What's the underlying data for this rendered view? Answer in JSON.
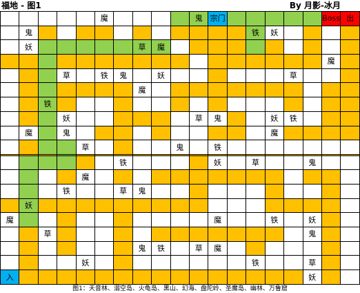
{
  "title": "福地 - 图1",
  "author": "By 月影-冰月",
  "legend": {
    "white": "#ffffff",
    "orange": "#ffc000",
    "green": "#92d050",
    "red": "#ff0000",
    "blue": "#00b0f0"
  },
  "grid": [
    [
      [
        "w",
        ""
      ],
      [
        "w",
        ""
      ],
      [
        "w",
        ""
      ],
      [
        "w",
        ""
      ],
      [
        "w",
        ""
      ],
      [
        "w",
        "魔"
      ],
      [
        "w",
        ""
      ],
      [
        "w",
        ""
      ],
      [
        "w",
        ""
      ],
      [
        "g",
        ""
      ],
      [
        "g",
        "鬼"
      ],
      [
        "c",
        "宗门"
      ],
      [
        "g",
        ""
      ],
      [
        "g",
        ""
      ],
      [
        "g",
        ""
      ],
      [
        "g",
        ""
      ],
      [
        "g",
        ""
      ],
      [
        "r",
        "Boss"
      ],
      [
        "r",
        "出"
      ]
    ],
    [
      [
        "w",
        ""
      ],
      [
        "w",
        "鬼"
      ],
      [
        "o",
        ""
      ],
      [
        "w",
        ""
      ],
      [
        "o",
        ""
      ],
      [
        "o",
        ""
      ],
      [
        "w",
        ""
      ],
      [
        "o",
        ""
      ],
      [
        "w",
        ""
      ],
      [
        "o",
        ""
      ],
      [
        "o",
        ""
      ],
      [
        "o",
        ""
      ],
      [
        "o",
        ""
      ],
      [
        "g",
        "铁"
      ],
      [
        "w",
        "妖"
      ],
      [
        "w",
        ""
      ],
      [
        "o",
        ""
      ],
      [
        "w",
        ""
      ],
      [
        "o",
        ""
      ]
    ],
    [
      [
        "w",
        ""
      ],
      [
        "w",
        "妖"
      ],
      [
        "g",
        ""
      ],
      [
        "g",
        ""
      ],
      [
        "g",
        ""
      ],
      [
        "g",
        ""
      ],
      [
        "g",
        ""
      ],
      [
        "g",
        "草"
      ],
      [
        "g",
        "魔"
      ],
      [
        "w",
        ""
      ],
      [
        "o",
        ""
      ],
      [
        "o",
        ""
      ],
      [
        "o",
        ""
      ],
      [
        "g",
        ""
      ],
      [
        "o",
        ""
      ],
      [
        "w",
        ""
      ],
      [
        "o",
        ""
      ],
      [
        "w",
        ""
      ],
      [
        "o",
        ""
      ]
    ],
    [
      [
        "o",
        ""
      ],
      [
        "o",
        ""
      ],
      [
        "g",
        ""
      ],
      [
        "o",
        ""
      ],
      [
        "o",
        ""
      ],
      [
        "o",
        ""
      ],
      [
        "o",
        ""
      ],
      [
        "o",
        ""
      ],
      [
        "o",
        ""
      ],
      [
        "o",
        ""
      ],
      [
        "w",
        ""
      ],
      [
        "o",
        ""
      ],
      [
        "o",
        ""
      ],
      [
        "o",
        ""
      ],
      [
        "o",
        ""
      ],
      [
        "o",
        ""
      ],
      [
        "o",
        ""
      ],
      [
        "w",
        "魔"
      ],
      [
        "o",
        ""
      ]
    ],
    [
      [
        "w",
        ""
      ],
      [
        "o",
        ""
      ],
      [
        "g",
        ""
      ],
      [
        "w",
        "草"
      ],
      [
        "w",
        ""
      ],
      [
        "w",
        "铁"
      ],
      [
        "w",
        "鬼"
      ],
      [
        "w",
        ""
      ],
      [
        "w",
        "妖"
      ],
      [
        "w",
        ""
      ],
      [
        "w",
        ""
      ],
      [
        "o",
        ""
      ],
      [
        "w",
        ""
      ],
      [
        "w",
        ""
      ],
      [
        "w",
        ""
      ],
      [
        "w",
        "草"
      ],
      [
        "w",
        ""
      ],
      [
        "w",
        ""
      ],
      [
        "o",
        ""
      ]
    ],
    [
      [
        "w",
        ""
      ],
      [
        "o",
        ""
      ],
      [
        "g",
        ""
      ],
      [
        "o",
        ""
      ],
      [
        "o",
        ""
      ],
      [
        "o",
        ""
      ],
      [
        "o",
        ""
      ],
      [
        "w",
        "魔"
      ],
      [
        "w",
        ""
      ],
      [
        "o",
        ""
      ],
      [
        "o",
        ""
      ],
      [
        "o",
        ""
      ],
      [
        "o",
        ""
      ],
      [
        "o",
        ""
      ],
      [
        "o",
        ""
      ],
      [
        "o",
        ""
      ],
      [
        "w",
        ""
      ],
      [
        "o",
        ""
      ],
      [
        "o",
        ""
      ]
    ],
    [
      [
        "w",
        ""
      ],
      [
        "o",
        ""
      ],
      [
        "g",
        "铁"
      ],
      [
        "o",
        ""
      ],
      [
        "w",
        ""
      ],
      [
        "w",
        ""
      ],
      [
        "o",
        ""
      ],
      [
        "w",
        ""
      ],
      [
        "w",
        ""
      ],
      [
        "o",
        ""
      ],
      [
        "w",
        ""
      ],
      [
        "o",
        ""
      ],
      [
        "w",
        ""
      ],
      [
        "w",
        ""
      ],
      [
        "w",
        ""
      ],
      [
        "o",
        ""
      ],
      [
        "w",
        ""
      ],
      [
        "o",
        ""
      ],
      [
        "o",
        ""
      ]
    ],
    [
      [
        "w",
        ""
      ],
      [
        "o",
        ""
      ],
      [
        "g",
        ""
      ],
      [
        "w",
        "妖"
      ],
      [
        "w",
        ""
      ],
      [
        "w",
        ""
      ],
      [
        "o",
        ""
      ],
      [
        "o",
        ""
      ],
      [
        "o",
        ""
      ],
      [
        "w",
        ""
      ],
      [
        "w",
        "草"
      ],
      [
        "w",
        "鬼"
      ],
      [
        "o",
        ""
      ],
      [
        "w",
        ""
      ],
      [
        "w",
        "妖"
      ],
      [
        "w",
        "铁"
      ],
      [
        "w",
        ""
      ],
      [
        "o",
        ""
      ],
      [
        "o",
        ""
      ]
    ],
    [
      [
        "w",
        ""
      ],
      [
        "w",
        "魔"
      ],
      [
        "g",
        ""
      ],
      [
        "w",
        "鬼"
      ],
      [
        "w",
        ""
      ],
      [
        "o",
        ""
      ],
      [
        "o",
        ""
      ],
      [
        "w",
        ""
      ],
      [
        "o",
        ""
      ],
      [
        "w",
        ""
      ],
      [
        "w",
        ""
      ],
      [
        "o",
        ""
      ],
      [
        "o",
        ""
      ],
      [
        "w",
        ""
      ],
      [
        "w",
        "魔"
      ],
      [
        "o",
        ""
      ],
      [
        "o",
        ""
      ],
      [
        "o",
        ""
      ],
      [
        "o",
        ""
      ]
    ],
    [
      [
        "w",
        ""
      ],
      [
        "o",
        ""
      ],
      [
        "g",
        ""
      ],
      [
        "g",
        ""
      ],
      [
        "w",
        "草"
      ],
      [
        "w",
        ""
      ],
      [
        "o",
        ""
      ],
      [
        "w",
        ""
      ],
      [
        "w",
        ""
      ],
      [
        "w",
        "鬼"
      ],
      [
        "w",
        ""
      ],
      [
        "w",
        "铁"
      ],
      [
        "w",
        ""
      ],
      [
        "w",
        ""
      ],
      [
        "w",
        ""
      ],
      [
        "w",
        ""
      ],
      [
        "w",
        ""
      ],
      [
        "w",
        ""
      ],
      [
        "w",
        ""
      ]
    ],
    [
      [
        "o",
        ""
      ],
      [
        "o",
        ""
      ],
      [
        "o",
        ""
      ],
      [
        "g",
        ""
      ],
      [
        "o",
        ""
      ],
      [
        "o",
        ""
      ],
      [
        "o",
        ""
      ],
      [
        "o",
        ""
      ],
      [
        "o",
        ""
      ],
      [
        "o",
        ""
      ],
      [
        "o",
        ""
      ],
      [
        "o",
        ""
      ],
      [
        "o",
        ""
      ],
      [
        "o",
        ""
      ],
      [
        "o",
        ""
      ],
      [
        "o",
        ""
      ],
      [
        "o",
        ""
      ],
      [
        "o",
        ""
      ],
      [
        "o",
        ""
      ]
    ],
    [
      [
        "w",
        ""
      ],
      [
        "g",
        ""
      ],
      [
        "g",
        ""
      ],
      [
        "g",
        ""
      ],
      [
        "o",
        ""
      ],
      [
        "w",
        ""
      ],
      [
        "w",
        "铁"
      ],
      [
        "w",
        ""
      ],
      [
        "w",
        ""
      ],
      [
        "w",
        ""
      ],
      [
        "o",
        ""
      ],
      [
        "w",
        "妖"
      ],
      [
        "w",
        ""
      ],
      [
        "w",
        "草"
      ],
      [
        "w",
        ""
      ],
      [
        "w",
        ""
      ],
      [
        "w",
        "鬼"
      ],
      [
        "w",
        ""
      ],
      [
        "w",
        ""
      ]
    ],
    [
      [
        "w",
        ""
      ],
      [
        "g",
        ""
      ],
      [
        "w",
        ""
      ],
      [
        "o",
        ""
      ],
      [
        "w",
        "魔"
      ],
      [
        "w",
        ""
      ],
      [
        "o",
        ""
      ],
      [
        "w",
        ""
      ],
      [
        "o",
        ""
      ],
      [
        "o",
        ""
      ],
      [
        "o",
        ""
      ],
      [
        "o",
        ""
      ],
      [
        "o",
        ""
      ],
      [
        "o",
        ""
      ],
      [
        "o",
        ""
      ],
      [
        "w",
        ""
      ],
      [
        "o",
        ""
      ],
      [
        "o",
        ""
      ],
      [
        "w",
        ""
      ]
    ],
    [
      [
        "w",
        ""
      ],
      [
        "g",
        ""
      ],
      [
        "w",
        ""
      ],
      [
        "w",
        "铁"
      ],
      [
        "w",
        ""
      ],
      [
        "w",
        ""
      ],
      [
        "w",
        "草"
      ],
      [
        "w",
        "鬼"
      ],
      [
        "w",
        ""
      ],
      [
        "w",
        ""
      ],
      [
        "o",
        ""
      ],
      [
        "w",
        ""
      ],
      [
        "w",
        ""
      ],
      [
        "w",
        ""
      ],
      [
        "o",
        ""
      ],
      [
        "w",
        ""
      ],
      [
        "w",
        ""
      ],
      [
        "o",
        ""
      ],
      [
        "w",
        ""
      ]
    ],
    [
      [
        "o",
        ""
      ],
      [
        "g",
        "妖"
      ],
      [
        "o",
        ""
      ],
      [
        "o",
        ""
      ],
      [
        "o",
        ""
      ],
      [
        "o",
        ""
      ],
      [
        "o",
        ""
      ],
      [
        "o",
        ""
      ],
      [
        "o",
        ""
      ],
      [
        "o",
        ""
      ],
      [
        "o",
        ""
      ],
      [
        "w",
        ""
      ],
      [
        "w",
        ""
      ],
      [
        "w",
        ""
      ],
      [
        "o",
        ""
      ],
      [
        "o",
        ""
      ],
      [
        "o",
        ""
      ],
      [
        "o",
        ""
      ],
      [
        "w",
        ""
      ]
    ],
    [
      [
        "w",
        "魔"
      ],
      [
        "g",
        ""
      ],
      [
        "w",
        ""
      ],
      [
        "o",
        ""
      ],
      [
        "w",
        ""
      ],
      [
        "w",
        ""
      ],
      [
        "o",
        ""
      ],
      [
        "w",
        ""
      ],
      [
        "w",
        ""
      ],
      [
        "w",
        ""
      ],
      [
        "w",
        ""
      ],
      [
        "w",
        "魔"
      ],
      [
        "w",
        ""
      ],
      [
        "w",
        ""
      ],
      [
        "w",
        "铁"
      ],
      [
        "w",
        ""
      ],
      [
        "w",
        "妖"
      ],
      [
        "o",
        ""
      ],
      [
        "w",
        ""
      ]
    ],
    [
      [
        "w",
        ""
      ],
      [
        "o",
        ""
      ],
      [
        "w",
        "草"
      ],
      [
        "o",
        ""
      ],
      [
        "w",
        ""
      ],
      [
        "w",
        ""
      ],
      [
        "o",
        ""
      ],
      [
        "w",
        ""
      ],
      [
        "o",
        ""
      ],
      [
        "o",
        ""
      ],
      [
        "o",
        ""
      ],
      [
        "o",
        ""
      ],
      [
        "o",
        ""
      ],
      [
        "o",
        ""
      ],
      [
        "o",
        ""
      ],
      [
        "w",
        ""
      ],
      [
        "w",
        "鬼"
      ],
      [
        "o",
        ""
      ],
      [
        "w",
        ""
      ]
    ],
    [
      [
        "w",
        ""
      ],
      [
        "o",
        ""
      ],
      [
        "w",
        ""
      ],
      [
        "o",
        ""
      ],
      [
        "w",
        ""
      ],
      [
        "w",
        ""
      ],
      [
        "o",
        ""
      ],
      [
        "w",
        "鬼"
      ],
      [
        "w",
        "铁"
      ],
      [
        "w",
        ""
      ],
      [
        "w",
        "草"
      ],
      [
        "w",
        "魔"
      ],
      [
        "w",
        ""
      ],
      [
        "o",
        ""
      ],
      [
        "w",
        ""
      ],
      [
        "w",
        ""
      ],
      [
        "w",
        ""
      ],
      [
        "o",
        ""
      ],
      [
        "w",
        ""
      ]
    ],
    [
      [
        "w",
        ""
      ],
      [
        "o",
        ""
      ],
      [
        "w",
        ""
      ],
      [
        "w",
        ""
      ],
      [
        "w",
        "妖"
      ],
      [
        "w",
        ""
      ],
      [
        "o",
        ""
      ],
      [
        "w",
        ""
      ],
      [
        "w",
        ""
      ],
      [
        "w",
        ""
      ],
      [
        "w",
        ""
      ],
      [
        "w",
        ""
      ],
      [
        "w",
        ""
      ],
      [
        "w",
        "铁"
      ],
      [
        "w",
        ""
      ],
      [
        "w",
        ""
      ],
      [
        "w",
        "草"
      ],
      [
        "o",
        ""
      ],
      [
        "w",
        ""
      ]
    ],
    [
      [
        "b",
        "入"
      ],
      [
        "o",
        ""
      ],
      [
        "o",
        ""
      ],
      [
        "o",
        ""
      ],
      [
        "o",
        ""
      ],
      [
        "o",
        ""
      ],
      [
        "o",
        ""
      ],
      [
        "o",
        ""
      ],
      [
        "o",
        ""
      ],
      [
        "o",
        ""
      ],
      [
        "o",
        ""
      ],
      [
        "o",
        ""
      ],
      [
        "o",
        ""
      ],
      [
        "o",
        ""
      ],
      [
        "o",
        ""
      ],
      [
        "o",
        ""
      ],
      [
        "w",
        "妖"
      ],
      [
        "o",
        ""
      ],
      [
        "w",
        ""
      ]
    ]
  ],
  "footer": "图1：天音林、溺空岛、火龟岛、黑山、幻海、盘陀岭、圣魔岛、幽林、万鲁窟"
}
